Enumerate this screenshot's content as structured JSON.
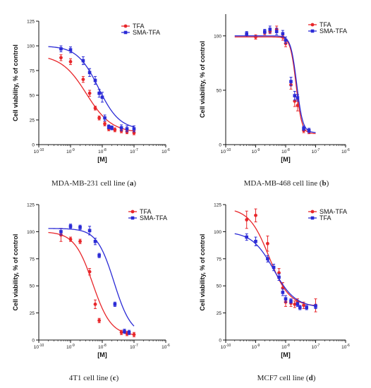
{
  "colors": {
    "red": "#e8262a",
    "blue": "#2b2bd6",
    "axis": "#111111"
  },
  "chart_data": [
    {
      "type": "scatter",
      "xscale": "log",
      "xlim": [
        1e-10,
        1e-06
      ],
      "ylim": [
        0,
        125
      ],
      "x_tick_labels": [
        "10-10",
        "10-9",
        "10-8",
        "10-7",
        "10-6"
      ],
      "y_ticks": [
        0,
        25,
        50,
        75,
        100,
        125
      ],
      "xlabel": "[M]",
      "ylabel": "Cell viability, % of control",
      "legend_position": "top-right",
      "caption_prefix": "MDA-MB-231 cell line (",
      "caption_letter": "a",
      "caption_suffix": ")",
      "series": [
        {
          "name": "TFA",
          "color": "red",
          "marker": "circle",
          "points": [
            {
              "x": 5e-10,
              "y": 88,
              "err": 3
            },
            {
              "x": 1e-09,
              "y": 84,
              "err": 3
            },
            {
              "x": 2.5e-09,
              "y": 66,
              "err": 3
            },
            {
              "x": 4e-09,
              "y": 52,
              "err": 3
            },
            {
              "x": 6e-09,
              "y": 37,
              "err": 2
            },
            {
              "x": 8e-09,
              "y": 27,
              "err": 2
            },
            {
              "x": 1.2e-08,
              "y": 21,
              "err": 2
            },
            {
              "x": 1.6e-08,
              "y": 16,
              "err": 2
            },
            {
              "x": 2.5e-08,
              "y": 15,
              "err": 2
            },
            {
              "x": 4e-08,
              "y": 14,
              "err": 2
            },
            {
              "x": 6e-08,
              "y": 13,
              "err": 2
            },
            {
              "x": 1e-07,
              "y": 12,
              "err": 2
            }
          ],
          "fit": {
            "bottom": 12,
            "top": 91,
            "logEC50": -8.5,
            "hill": 1.1
          }
        },
        {
          "name": "SMA-TFA",
          "color": "blue",
          "marker": "square",
          "points": [
            {
              "x": 5e-10,
              "y": 97,
              "err": 3
            },
            {
              "x": 1e-09,
              "y": 96,
              "err": 3
            },
            {
              "x": 2.5e-09,
              "y": 85,
              "err": 4
            },
            {
              "x": 4e-09,
              "y": 73,
              "err": 4
            },
            {
              "x": 6e-09,
              "y": 65,
              "err": 4
            },
            {
              "x": 8e-09,
              "y": 52,
              "err": 4
            },
            {
              "x": 1e-08,
              "y": 48,
              "err": 5
            },
            {
              "x": 1.2e-08,
              "y": 27,
              "err": 3
            },
            {
              "x": 1.6e-08,
              "y": 18,
              "err": 2
            },
            {
              "x": 2e-08,
              "y": 17,
              "err": 2
            },
            {
              "x": 4e-08,
              "y": 17,
              "err": 3
            },
            {
              "x": 6e-08,
              "y": 16,
              "err": 3
            },
            {
              "x": 1e-07,
              "y": 16,
              "err": 3
            }
          ],
          "fit": {
            "bottom": 15,
            "top": 100,
            "logEC50": -8.12,
            "hill": 1.3
          }
        }
      ]
    },
    {
      "type": "scatter",
      "xscale": "log",
      "xlim": [
        1e-10,
        1e-06
      ],
      "ylim": [
        0,
        120
      ],
      "x_tick_labels": [
        "10-10",
        "10-9",
        "10-8",
        "10-7",
        "10-6"
      ],
      "y_ticks": [
        0,
        50,
        100
      ],
      "xlabel": "[M]",
      "ylabel": "Cell viability, % of control",
      "legend_position": "top-right",
      "caption_prefix": "MDA-MB-468 cell line (",
      "caption_letter": "b",
      "caption_suffix": ")",
      "series": [
        {
          "name": "TFA",
          "color": "red",
          "marker": "circle",
          "points": [
            {
              "x": 5e-10,
              "y": 101,
              "err": 2
            },
            {
              "x": 1e-09,
              "y": 99,
              "err": 2
            },
            {
              "x": 2e-09,
              "y": 103,
              "err": 2
            },
            {
              "x": 3e-09,
              "y": 104,
              "err": 2
            },
            {
              "x": 5e-09,
              "y": 106,
              "err": 3
            },
            {
              "x": 8e-09,
              "y": 99,
              "err": 3
            },
            {
              "x": 1e-08,
              "y": 93,
              "err": 3
            },
            {
              "x": 1.5e-08,
              "y": 55,
              "err": 4
            },
            {
              "x": 2e-08,
              "y": 40,
              "err": 5
            },
            {
              "x": 2.5e-08,
              "y": 36,
              "err": 5
            },
            {
              "x": 4e-08,
              "y": 13,
              "err": 2
            },
            {
              "x": 6e-08,
              "y": 12,
              "err": 2
            }
          ],
          "fit": {
            "bottom": 10,
            "top": 99,
            "logEC50": -7.65,
            "hill": 4.5
          }
        },
        {
          "name": "SMA-TFA",
          "color": "blue",
          "marker": "square",
          "points": [
            {
              "x": 5e-10,
              "y": 102,
              "err": 2
            },
            {
              "x": 2e-09,
              "y": 104,
              "err": 2
            },
            {
              "x": 3e-09,
              "y": 106,
              "err": 3
            },
            {
              "x": 5e-09,
              "y": 104,
              "err": 3
            },
            {
              "x": 8e-09,
              "y": 102,
              "err": 3
            },
            {
              "x": 1e-08,
              "y": 96,
              "err": 3
            },
            {
              "x": 1.5e-08,
              "y": 58,
              "err": 4
            },
            {
              "x": 2e-08,
              "y": 45,
              "err": 4
            },
            {
              "x": 2.5e-08,
              "y": 43,
              "err": 3
            },
            {
              "x": 4e-08,
              "y": 15,
              "err": 2
            },
            {
              "x": 6e-08,
              "y": 13,
              "err": 2
            }
          ],
          "fit": {
            "bottom": 11,
            "top": 100,
            "logEC50": -7.63,
            "hill": 4.3
          }
        }
      ]
    },
    {
      "type": "scatter",
      "xscale": "log",
      "xlim": [
        1e-10,
        1e-06
      ],
      "ylim": [
        0,
        125
      ],
      "x_tick_labels": [
        "10-10",
        "10-9",
        "10-8",
        "10-7",
        "10-6"
      ],
      "y_ticks": [
        0,
        25,
        50,
        75,
        100,
        125
      ],
      "xlabel": "[M]",
      "ylabel": "Cell viability, % of control",
      "legend_position": "top-right",
      "caption_prefix": "4T1 cell line (",
      "caption_letter": "c",
      "caption_suffix": ")",
      "series": [
        {
          "name": "TFA",
          "color": "red",
          "marker": "circle",
          "points": [
            {
              "x": 5e-10,
              "y": 97,
              "err": 6
            },
            {
              "x": 1e-09,
              "y": 93,
              "err": 2
            },
            {
              "x": 2e-09,
              "y": 91,
              "err": 2
            },
            {
              "x": 4e-09,
              "y": 63,
              "err": 3
            },
            {
              "x": 6e-09,
              "y": 33,
              "err": 4
            },
            {
              "x": 8e-09,
              "y": 18,
              "err": 2
            },
            {
              "x": 4e-08,
              "y": 7,
              "err": 2
            },
            {
              "x": 6e-08,
              "y": 6,
              "err": 2
            },
            {
              "x": 1e-07,
              "y": 5,
              "err": 2
            }
          ],
          "fit": {
            "bottom": 4,
            "top": 100,
            "logEC50": -8.3,
            "hill": 1.5
          }
        },
        {
          "name": "SMA-TFA",
          "color": "blue",
          "marker": "square",
          "points": [
            {
              "x": 5e-10,
              "y": 100,
              "err": 3
            },
            {
              "x": 1e-09,
              "y": 105,
              "err": 2
            },
            {
              "x": 2e-09,
              "y": 104,
              "err": 2
            },
            {
              "x": 4e-09,
              "y": 101,
              "err": 4
            },
            {
              "x": 6e-09,
              "y": 91,
              "err": 3
            },
            {
              "x": 8e-09,
              "y": 78,
              "err": 2
            },
            {
              "x": 2.5e-08,
              "y": 33,
              "err": 2
            },
            {
              "x": 5e-08,
              "y": 8,
              "err": 2
            },
            {
              "x": 7e-08,
              "y": 7,
              "err": 2
            }
          ],
          "fit": {
            "bottom": 4,
            "top": 103,
            "logEC50": -7.63,
            "hill": 1.6
          }
        }
      ]
    },
    {
      "type": "scatter",
      "xscale": "log",
      "xlim": [
        1e-10,
        1e-06
      ],
      "ylim": [
        0,
        125
      ],
      "x_tick_labels": [
        "10-10",
        "10-9",
        "10-8",
        "10-7",
        "10-6"
      ],
      "y_ticks": [
        0,
        25,
        50,
        75,
        100,
        125
      ],
      "xlabel": "[M]",
      "ylabel": "Cell viability, % of control",
      "legend_position": "top-right",
      "caption_prefix": "MCF7 cell line (",
      "caption_letter": "d",
      "caption_suffix": ")",
      "series": [
        {
          "name": "SMA-TFA",
          "color": "red",
          "marker": "circle",
          "points": [
            {
              "x": 5e-10,
              "y": 111,
              "err": 8
            },
            {
              "x": 1e-09,
              "y": 115,
              "err": 6
            },
            {
              "x": 2.5e-09,
              "y": 89,
              "err": 7
            },
            {
              "x": 6e-09,
              "y": 62,
              "err": 4
            },
            {
              "x": 8e-09,
              "y": 48,
              "err": 5
            },
            {
              "x": 1e-08,
              "y": 35,
              "err": 4
            },
            {
              "x": 1.5e-08,
              "y": 34,
              "err": 3
            },
            {
              "x": 2e-08,
              "y": 33,
              "err": 3
            },
            {
              "x": 2.5e-08,
              "y": 35,
              "err": 3
            },
            {
              "x": 4e-08,
              "y": 32,
              "err": 3
            },
            {
              "x": 1e-07,
              "y": 32,
              "err": 6
            }
          ],
          "fit": {
            "bottom": 31,
            "top": 122,
            "logEC50": -8.55,
            "hill": 1.3
          }
        },
        {
          "name": "TFA",
          "color": "blue",
          "marker": "square",
          "points": [
            {
              "x": 5e-10,
              "y": 95,
              "err": 3
            },
            {
              "x": 1e-09,
              "y": 91,
              "err": 4
            },
            {
              "x": 2.5e-09,
              "y": 75,
              "err": 3
            },
            {
              "x": 4e-09,
              "y": 67,
              "err": 3
            },
            {
              "x": 6e-09,
              "y": 58,
              "err": 3
            },
            {
              "x": 8e-09,
              "y": 44,
              "err": 3
            },
            {
              "x": 1e-08,
              "y": 38,
              "err": 3
            },
            {
              "x": 1.5e-08,
              "y": 36,
              "err": 2
            },
            {
              "x": 2.5e-08,
              "y": 33,
              "err": 2
            },
            {
              "x": 3e-08,
              "y": 30,
              "err": 2
            },
            {
              "x": 5e-08,
              "y": 30,
              "err": 2
            },
            {
              "x": 1e-07,
              "y": 31,
              "err": 2
            }
          ],
          "fit": {
            "bottom": 30,
            "top": 100,
            "logEC50": -8.4,
            "hill": 1.2
          }
        }
      ]
    }
  ]
}
